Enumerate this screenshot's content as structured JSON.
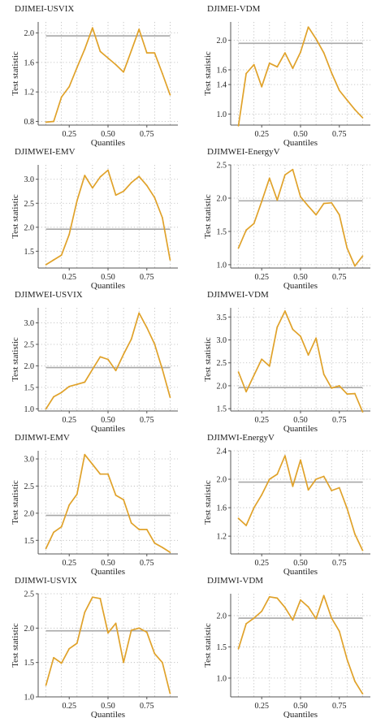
{
  "chart_data": [
    {
      "type": "line",
      "title": "DJIMEI-USVIX",
      "xlabel": "Quantiles",
      "ylabel": "Test statistic",
      "xlim": [
        0.05,
        0.95
      ],
      "ylim": [
        0.75,
        2.15
      ],
      "xticks": [
        0.25,
        0.5,
        0.75
      ],
      "xtick_labels": [
        "0.25",
        "0.50",
        "0.75"
      ],
      "yticks": [
        0.8,
        1.2,
        1.6,
        2.0
      ],
      "ytick_labels": [
        "0.8",
        "1.2",
        "1.6",
        "2.0"
      ],
      "grid": true,
      "reference_line": 1.96,
      "x": [
        0.1,
        0.15,
        0.2,
        0.25,
        0.3,
        0.35,
        0.4,
        0.45,
        0.5,
        0.55,
        0.6,
        0.65,
        0.7,
        0.75,
        0.8,
        0.85,
        0.9
      ],
      "y": [
        0.79,
        0.8,
        1.13,
        1.27,
        1.53,
        1.78,
        2.07,
        1.75,
        1.66,
        1.57,
        1.47,
        1.76,
        2.05,
        1.73,
        1.73,
        1.45,
        1.16
      ]
    },
    {
      "type": "line",
      "title": "DJIMEI-VDM",
      "xlabel": "Quantiles",
      "ylabel": "Test statistic",
      "xlim": [
        0.05,
        0.95
      ],
      "ylim": [
        0.85,
        2.25
      ],
      "xticks": [
        0.25,
        0.5,
        0.75
      ],
      "xtick_labels": [
        "0.25",
        "0.50",
        "0.75"
      ],
      "yticks": [
        1.0,
        1.4,
        1.6,
        2.0
      ],
      "ytick_labels": [
        "1.0",
        "1.4",
        "1.6",
        "2.0"
      ],
      "grid": true,
      "reference_line": 1.96,
      "x": [
        0.1,
        0.15,
        0.2,
        0.25,
        0.3,
        0.35,
        0.4,
        0.45,
        0.5,
        0.55,
        0.6,
        0.65,
        0.7,
        0.75,
        0.8,
        0.85,
        0.9
      ],
      "y": [
        0.84,
        1.55,
        1.67,
        1.37,
        1.69,
        1.64,
        1.83,
        1.62,
        1.84,
        2.18,
        2.02,
        1.83,
        1.56,
        1.32,
        1.19,
        1.06,
        0.95
      ]
    },
    {
      "type": "line",
      "title": "DJIMWEI-EMV",
      "xlabel": "Quantiles",
      "ylabel": "Test statistic",
      "xlim": [
        0.05,
        0.95
      ],
      "ylim": [
        1.15,
        3.3
      ],
      "xticks": [
        0.25,
        0.5,
        0.75
      ],
      "xtick_labels": [
        "0.25",
        "0.50",
        "0.75"
      ],
      "yticks": [
        1.5,
        2.0,
        2.5,
        3.0
      ],
      "ytick_labels": [
        "1.5",
        "2.0",
        "2.5",
        "3.0"
      ],
      "grid": true,
      "reference_line": 1.96,
      "x": [
        0.1,
        0.15,
        0.2,
        0.25,
        0.3,
        0.35,
        0.4,
        0.45,
        0.5,
        0.55,
        0.6,
        0.65,
        0.7,
        0.75,
        0.8,
        0.85,
        0.9
      ],
      "y": [
        1.22,
        1.32,
        1.42,
        1.85,
        2.55,
        3.08,
        2.82,
        3.05,
        3.19,
        2.67,
        2.75,
        2.93,
        3.06,
        2.87,
        2.62,
        2.2,
        1.32
      ]
    },
    {
      "type": "line",
      "title": "DJIMWEI-EnergyV",
      "xlabel": "Quantiles",
      "ylabel": "Test statistic",
      "xlim": [
        0.05,
        0.95
      ],
      "ylim": [
        0.95,
        2.5
      ],
      "xticks": [
        0.25,
        0.5,
        0.75
      ],
      "xtick_labels": [
        "0.25",
        "0.50",
        "0.75"
      ],
      "yticks": [
        1.0,
        1.5,
        2.0,
        2.5
      ],
      "ytick_labels": [
        "1.0",
        "1.5",
        "2.0",
        "2.5"
      ],
      "grid": true,
      "reference_line": 1.96,
      "x": [
        0.1,
        0.15,
        0.2,
        0.25,
        0.3,
        0.35,
        0.4,
        0.45,
        0.5,
        0.55,
        0.6,
        0.65,
        0.7,
        0.75,
        0.8,
        0.85,
        0.9
      ],
      "y": [
        1.25,
        1.52,
        1.62,
        1.95,
        2.3,
        1.97,
        2.35,
        2.43,
        2.02,
        1.88,
        1.75,
        1.92,
        1.93,
        1.75,
        1.25,
        0.98,
        1.13
      ]
    },
    {
      "type": "line",
      "title": "DJIMWEI-USVIX",
      "xlabel": "Quantiles",
      "ylabel": "Test statistic",
      "xlim": [
        0.05,
        0.95
      ],
      "ylim": [
        0.95,
        3.35
      ],
      "xticks": [
        0.25,
        0.5,
        0.75
      ],
      "xtick_labels": [
        "0.25",
        "0.50",
        "0.75"
      ],
      "yticks": [
        1.0,
        1.5,
        2.0,
        2.5,
        3.0
      ],
      "ytick_labels": [
        "1.0",
        "1.5",
        "2.0",
        "2.5",
        "3.0"
      ],
      "grid": true,
      "reference_line": 1.96,
      "x": [
        0.1,
        0.15,
        0.2,
        0.25,
        0.3,
        0.35,
        0.4,
        0.45,
        0.5,
        0.55,
        0.6,
        0.65,
        0.7,
        0.75,
        0.8,
        0.85,
        0.9
      ],
      "y": [
        1.0,
        1.28,
        1.38,
        1.52,
        1.57,
        1.62,
        1.92,
        2.21,
        2.15,
        1.89,
        2.27,
        2.62,
        3.23,
        2.89,
        2.51,
        1.92,
        1.27
      ]
    },
    {
      "type": "line",
      "title": "DJIMWEI-VDM",
      "xlabel": "Quantiles",
      "ylabel": "Test statistic",
      "xlim": [
        0.05,
        0.95
      ],
      "ylim": [
        1.45,
        3.7
      ],
      "xticks": [
        0.25,
        0.5,
        0.75
      ],
      "xtick_labels": [
        "0.25",
        "0.50",
        "0.75"
      ],
      "yticks": [
        1.5,
        2.0,
        2.5,
        3.0,
        3.5
      ],
      "ytick_labels": [
        "1.5",
        "2.0",
        "2.5",
        "3.0",
        "3.5"
      ],
      "grid": true,
      "reference_line": 1.96,
      "x": [
        0.1,
        0.15,
        0.2,
        0.25,
        0.3,
        0.35,
        0.4,
        0.45,
        0.5,
        0.55,
        0.6,
        0.65,
        0.7,
        0.75,
        0.8,
        0.85,
        0.9
      ],
      "y": [
        2.3,
        1.87,
        2.23,
        2.58,
        2.43,
        3.28,
        3.63,
        3.23,
        3.08,
        2.67,
        3.04,
        2.25,
        1.95,
        2.0,
        1.82,
        1.83,
        1.43
      ]
    },
    {
      "type": "line",
      "title": "DJIMWI-EMV",
      "xlabel": "Quantiles",
      "ylabel": "Test statistic",
      "xlim": [
        0.05,
        0.95
      ],
      "ylim": [
        1.25,
        3.15
      ],
      "xticks": [
        0.25,
        0.5,
        0.75
      ],
      "xtick_labels": [
        "0.25",
        "0.50",
        "0.75"
      ],
      "yticks": [
        1.5,
        2.0,
        2.5,
        3.0
      ],
      "ytick_labels": [
        "1.5",
        "2.0",
        "2.5",
        "3.0"
      ],
      "grid": true,
      "reference_line": 1.96,
      "x": [
        0.1,
        0.15,
        0.2,
        0.25,
        0.3,
        0.35,
        0.4,
        0.45,
        0.5,
        0.55,
        0.6,
        0.65,
        0.7,
        0.75,
        0.8,
        0.85,
        0.9
      ],
      "y": [
        1.35,
        1.65,
        1.75,
        2.15,
        2.35,
        3.08,
        2.9,
        2.72,
        2.72,
        2.33,
        2.25,
        1.82,
        1.7,
        1.7,
        1.45,
        1.37,
        1.28
      ]
    },
    {
      "type": "line",
      "title": "DJIMWI-EnergyV",
      "xlabel": "Quantiles",
      "ylabel": "Test statistic",
      "xlim": [
        0.05,
        0.95
      ],
      "ylim": [
        0.95,
        2.4
      ],
      "xticks": [
        0.25,
        0.5,
        0.75
      ],
      "xtick_labels": [
        "0.25",
        "0.50",
        "0.75"
      ],
      "yticks": [
        1.2,
        1.6,
        2.0,
        2.4
      ],
      "ytick_labels": [
        "1.2",
        "1.6",
        "2.0",
        "2.4"
      ],
      "grid": true,
      "reference_line": 1.96,
      "x": [
        0.1,
        0.15,
        0.2,
        0.25,
        0.3,
        0.35,
        0.4,
        0.45,
        0.5,
        0.55,
        0.6,
        0.65,
        0.7,
        0.75,
        0.8,
        0.85,
        0.9
      ],
      "y": [
        1.45,
        1.35,
        1.6,
        1.78,
        2.0,
        2.07,
        2.33,
        1.9,
        2.27,
        1.85,
        2.0,
        2.04,
        1.84,
        1.88,
        1.59,
        1.23,
        1.0
      ]
    },
    {
      "type": "line",
      "title": "DJIMWI-USVIX",
      "xlabel": "Quantiles",
      "ylabel": "Test statistic",
      "xlim": [
        0.05,
        0.95
      ],
      "ylim": [
        1.0,
        2.5
      ],
      "xticks": [
        0.25,
        0.5,
        0.75
      ],
      "xtick_labels": [
        "0.25",
        "0.50",
        "0.75"
      ],
      "yticks": [
        1.0,
        1.5,
        2.0,
        2.5
      ],
      "ytick_labels": [
        "1.0",
        "1.5",
        "2.0",
        "2.5"
      ],
      "grid": true,
      "reference_line": 1.96,
      "x": [
        0.1,
        0.15,
        0.2,
        0.25,
        0.3,
        0.35,
        0.4,
        0.45,
        0.5,
        0.55,
        0.6,
        0.65,
        0.7,
        0.75,
        0.8,
        0.85,
        0.9
      ],
      "y": [
        1.17,
        1.57,
        1.49,
        1.7,
        1.78,
        2.23,
        2.45,
        2.43,
        1.93,
        2.07,
        1.5,
        1.97,
        2.0,
        1.94,
        1.63,
        1.5,
        1.05
      ]
    },
    {
      "type": "line",
      "title": "DJIMWI-VDM",
      "xlabel": "Quantiles",
      "ylabel": "Test statistic",
      "xlim": [
        0.05,
        0.95
      ],
      "ylim": [
        0.7,
        2.35
      ],
      "xticks": [
        0.25,
        0.5,
        0.75
      ],
      "xtick_labels": [
        "0.25",
        "0.50",
        "0.75"
      ],
      "yticks": [
        1.0,
        1.5,
        2.0
      ],
      "ytick_labels": [
        "1.0",
        "1.5",
        "2.0"
      ],
      "grid": true,
      "reference_line": 1.96,
      "x": [
        0.1,
        0.15,
        0.2,
        0.25,
        0.3,
        0.35,
        0.4,
        0.45,
        0.5,
        0.55,
        0.6,
        0.65,
        0.7,
        0.75,
        0.8,
        0.85,
        0.9
      ],
      "y": [
        1.47,
        1.87,
        1.96,
        2.07,
        2.3,
        2.28,
        2.13,
        1.93,
        2.25,
        2.14,
        1.95,
        2.32,
        1.96,
        1.75,
        1.3,
        0.95,
        0.75
      ]
    }
  ],
  "colors": {
    "series": "#e0a22a",
    "reference_line": "#a8a8a8",
    "grid": "#b8b8b8",
    "axis": "#555555",
    "text": "#222222"
  }
}
